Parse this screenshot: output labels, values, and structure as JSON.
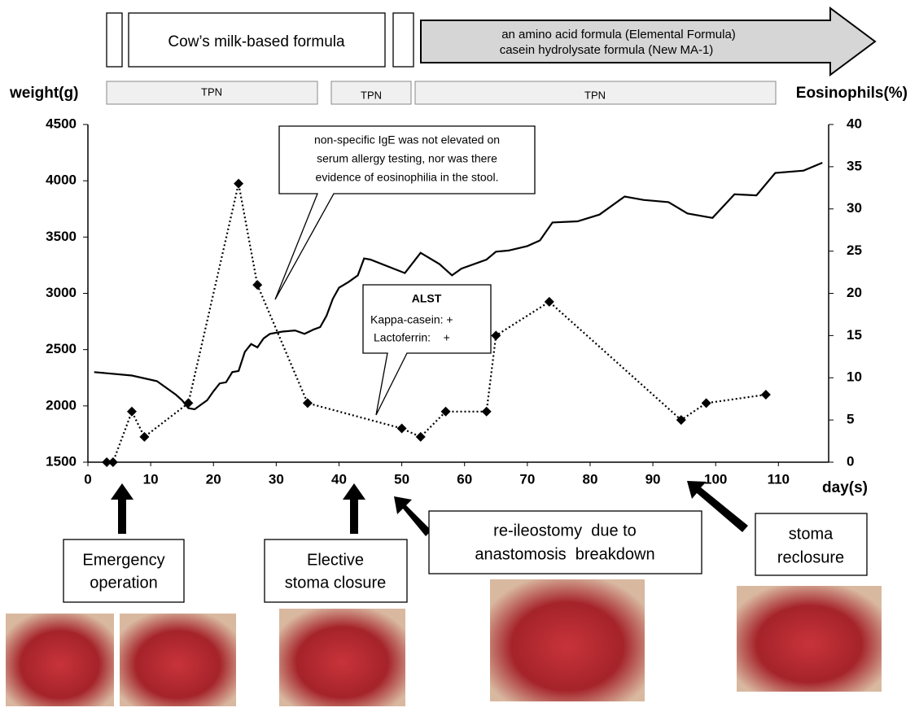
{
  "chart_data": {
    "type": "line",
    "y_label": "weight(g)",
    "y2_label": "Eosinophils(%)",
    "x_label": "day(s)",
    "xlim": [
      0,
      118
    ],
    "xticks": [
      0,
      10,
      20,
      30,
      40,
      50,
      60,
      70,
      80,
      90,
      100,
      110
    ],
    "ylim": [
      1500,
      4500
    ],
    "yticks": [
      1500,
      2000,
      2500,
      3000,
      3500,
      4000,
      4500
    ],
    "y2lim": [
      0,
      40
    ],
    "y2ticks": [
      0,
      5,
      10,
      15,
      20,
      25,
      30,
      35,
      40
    ],
    "series": [
      {
        "color": "#000000",
        "style": "solid",
        "axis": "y",
        "x": [
          1,
          7,
          11,
          14,
          15,
          16,
          17,
          18,
          19,
          20,
          21,
          22,
          23,
          24,
          25,
          26,
          27,
          28,
          29,
          31,
          33,
          34.5,
          36,
          37,
          38,
          39,
          40,
          41.5,
          43,
          44,
          45,
          50.5,
          53,
          56,
          58,
          59.5,
          63.5,
          65,
          67,
          70,
          72,
          74,
          78,
          81.5,
          85.5,
          88.5,
          92.5,
          95.5,
          99.5,
          103,
          106.5,
          109.5,
          114,
          117
        ],
        "values": [
          2300,
          2270,
          2220,
          2100,
          2050,
          1980,
          1970,
          2010,
          2050,
          2130,
          2200,
          2210,
          2300,
          2310,
          2480,
          2550,
          2520,
          2600,
          2640,
          2660,
          2670,
          2640,
          2680,
          2700,
          2800,
          2950,
          3050,
          3100,
          3160,
          3310,
          3300,
          3180,
          3360,
          3260,
          3160,
          3220,
          3300,
          3370,
          3380,
          3420,
          3470,
          3630,
          3640,
          3700,
          3860,
          3830,
          3810,
          3710,
          3670,
          3880,
          3870,
          4070,
          4090,
          4160
        ]
      },
      {
        "color": "#000000",
        "style": "dotted",
        "marker": "diamond",
        "axis": "y2",
        "x": [
          3,
          4,
          7,
          9,
          16,
          24,
          27,
          35,
          50,
          53,
          57,
          63.5,
          65,
          73.5,
          94.5,
          98.5,
          108
        ],
        "values": [
          0,
          0,
          6,
          3,
          7,
          33,
          21,
          7,
          4,
          3,
          6,
          6,
          15,
          19,
          5,
          7,
          8
        ]
      }
    ],
    "annotations": {
      "formula_cow": "Cow’s milk-based formula",
      "formula_amino": [
        "an amino acid formula (Elemental Formula)",
        "casein hydrolysate formula (New MA-1)"
      ],
      "tpn": [
        "TPN",
        "TPN",
        "TPN"
      ],
      "ige_note": [
        "non-specific IgE was not elevated on",
        "serum allergy testing, nor was there",
        "evidence of eosinophilia in the stool."
      ],
      "alst": [
        "ALST",
        "Kappa-casein: +",
        "Lactoferrin:    +"
      ],
      "emergency": [
        "Emergency",
        "operation"
      ],
      "elective": [
        "Elective",
        "stoma closure"
      ],
      "reileostomy": [
        "re-ileostomy  due to",
        "anastomosis  breakdown"
      ],
      "reclosure": [
        "stoma",
        "reclosure"
      ]
    }
  }
}
